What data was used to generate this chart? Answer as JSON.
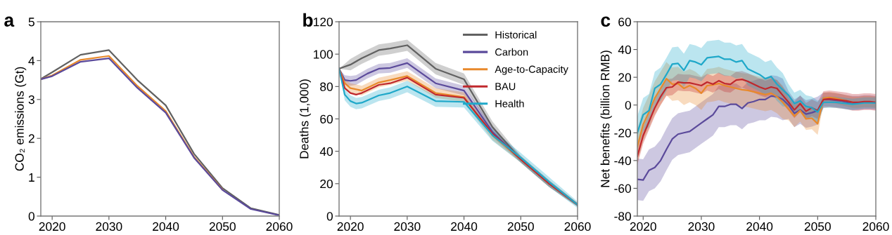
{
  "chart_data": [
    {
      "type": "line",
      "title": "a",
      "ylabel": "CO₂ emissions (Gt)",
      "x": [
        2018,
        2020,
        2025,
        2030,
        2035,
        2040,
        2045,
        2050,
        2055,
        2060
      ],
      "xlim": [
        2018,
        2060
      ],
      "xticks": [
        2020,
        2030,
        2040,
        2050,
        2060
      ],
      "ylim": [
        0,
        5
      ],
      "yticks": [
        0,
        1,
        2,
        3,
        4,
        5
      ],
      "grid": false,
      "legend": false,
      "marker": "none",
      "line_style": "solid",
      "series": [
        {
          "color": "#616161",
          "values": [
            3.53,
            3.7,
            4.15,
            4.27,
            3.5,
            2.85,
            1.6,
            0.72,
            0.2,
            0.03
          ]
        },
        {
          "color": "#e8892b",
          "values": [
            3.52,
            3.62,
            4.02,
            4.12,
            3.35,
            2.7,
            1.52,
            0.68,
            null,
            null
          ]
        },
        {
          "color": "#5b4a9b",
          "values": [
            3.52,
            3.6,
            3.97,
            4.06,
            3.3,
            2.66,
            1.5,
            0.67,
            0.18,
            0.02
          ]
        }
      ]
    },
    {
      "type": "line",
      "title": "b",
      "ylabel": "Deaths (1,000)",
      "xlim": [
        2018,
        2060
      ],
      "xticks": [
        2020,
        2030,
        2040,
        2050,
        2060
      ],
      "ylim": [
        0,
        120
      ],
      "yticks": [
        0,
        20,
        40,
        60,
        80,
        100,
        120
      ],
      "grid": false,
      "legend": "top right",
      "marker": "none",
      "line_style": "solid",
      "series": [
        {
          "name": "Historical",
          "color": "#616161",
          "x": [
            2018,
            2020,
            2022,
            2025,
            2027,
            2030,
            2035,
            2040,
            2045,
            2050,
            2055,
            2060
          ],
          "values": [
            91,
            93.5,
            97.5,
            102.5,
            103.5,
            105.5,
            91,
            84.5,
            55,
            35,
            20,
            7
          ],
          "upper": [
            91,
            97,
            101,
            106,
            107,
            109,
            94.5,
            88,
            58.5,
            37,
            22,
            8
          ],
          "lower": [
            91,
            90,
            94,
            99,
            100,
            102,
            87.5,
            81,
            51.5,
            33,
            18,
            6
          ]
        },
        {
          "name": "Carbon",
          "color": "#5b4a9b",
          "x": [
            2018,
            2019,
            2020,
            2021,
            2023,
            2025,
            2027,
            2030,
            2035,
            2040,
            2045,
            2050,
            2055,
            2060
          ],
          "values": [
            91,
            84,
            83.5,
            84,
            88,
            91,
            91.5,
            94.5,
            82,
            77.5,
            52,
            35,
            20,
            7
          ],
          "upper": [
            91,
            87,
            86.5,
            87,
            91,
            94,
            94.5,
            97.5,
            85,
            80.5,
            55,
            37,
            22,
            8
          ],
          "lower": [
            91,
            81,
            80.5,
            81,
            85,
            88,
            88.5,
            91.5,
            79,
            74.5,
            49,
            33,
            18,
            6
          ]
        },
        {
          "name": "Age-to-Capacity",
          "color": "#e8892b",
          "x": [
            2018,
            2019,
            2020,
            2022,
            2025,
            2027,
            2030,
            2035,
            2040,
            2045,
            2050,
            2055,
            2060
          ],
          "values": [
            91,
            82,
            79,
            77.5,
            82.5,
            84,
            86.5,
            76,
            73.5,
            50,
            35,
            20,
            7
          ],
          "upper": [
            91,
            85,
            82,
            80.5,
            85.5,
            87,
            89.5,
            79,
            76.5,
            53,
            37,
            22,
            8
          ],
          "lower": [
            91,
            79,
            76,
            74.5,
            79.5,
            81,
            83.5,
            73,
            70.5,
            47,
            33,
            18,
            6
          ]
        },
        {
          "name": "BAU",
          "color": "#c0282d",
          "x": [
            2018,
            2019,
            2020,
            2021,
            2022,
            2025,
            2027,
            2030,
            2035,
            2040,
            2045,
            2050,
            2055,
            2060
          ],
          "values": [
            91,
            79,
            76,
            75,
            76,
            81,
            82,
            85.5,
            75,
            73,
            51,
            35,
            20,
            7
          ]
        },
        {
          "name": "Health",
          "color": "#1fa8c9",
          "x": [
            2018,
            2019,
            2020,
            2021,
            2022,
            2025,
            2027,
            2030,
            2035,
            2040,
            2045,
            2050,
            2055,
            2060
          ],
          "values": [
            91,
            75,
            71,
            69.5,
            70,
            74.5,
            76,
            80,
            71,
            70.5,
            50,
            36,
            21,
            7
          ],
          "upper": [
            91,
            78.5,
            74.5,
            73,
            73.5,
            78,
            79.5,
            83.5,
            74.5,
            74,
            53.5,
            39,
            24,
            9
          ],
          "lower": [
            91,
            71.5,
            67.5,
            66,
            66.5,
            71,
            72.5,
            76.5,
            67.5,
            67,
            46.5,
            33,
            18,
            5
          ]
        }
      ]
    },
    {
      "type": "line",
      "title": "c",
      "ylabel": "Net benefits (billion RMB)",
      "x": [
        2019,
        2020,
        2021,
        2022,
        2023,
        2024,
        2025,
        2026,
        2027,
        2028,
        2029,
        2030,
        2031,
        2032,
        2033,
        2034,
        2035,
        2036,
        2037,
        2038,
        2039,
        2040,
        2041,
        2042,
        2043,
        2044,
        2045,
        2046,
        2047,
        2048,
        2049,
        2050,
        2051,
        2052,
        2053,
        2054,
        2055,
        2056,
        2057,
        2058,
        2059,
        2060
      ],
      "xlim": [
        2019,
        2060
      ],
      "xticks": [
        2020,
        2030,
        2040,
        2050,
        2060
      ],
      "ylim": [
        -80,
        60
      ],
      "yticks": [
        -80,
        -60,
        -40,
        -20,
        0,
        20,
        40,
        60
      ],
      "grid": false,
      "legend": false,
      "marker": "none",
      "line_style": "solid",
      "series": [
        {
          "color": "#5b4a9b",
          "values": [
            -53.5,
            -54,
            -47,
            -45,
            -40,
            -32,
            -24.5,
            -21,
            -20,
            -19,
            -16,
            -13,
            -10,
            -7,
            -1,
            -1,
            0.5,
            0.5,
            -2.5,
            1.5,
            2.5,
            4,
            4,
            6.5,
            6,
            4,
            0,
            -6,
            -3.5,
            -6.5,
            -5.5,
            -4,
            4,
            4,
            3.5,
            3,
            2,
            1.5,
            1.5,
            2,
            2,
            1.5
          ],
          "upper": [
            -38.5,
            -39,
            -32,
            -30,
            -25,
            -17,
            -9.5,
            -6,
            -5,
            -4,
            -1,
            2,
            5,
            8,
            14,
            14,
            15.5,
            15.5,
            12.5,
            16.5,
            17.5,
            19,
            19,
            21.5,
            21,
            19,
            10,
            4,
            6.5,
            3.5,
            4.5,
            6,
            9,
            9,
            8.5,
            8,
            7,
            6.5,
            6.5,
            7,
            7,
            6.5
          ],
          "lower": [
            -68.5,
            -69,
            -62,
            -60,
            -55,
            -47,
            -39.5,
            -36,
            -35,
            -34,
            -31,
            -28,
            -25,
            -22,
            -16,
            -16,
            -14.5,
            -14.5,
            -17.5,
            -13.5,
            -12.5,
            -11,
            -11,
            -8.5,
            -9,
            -11,
            -10,
            -16,
            -13.5,
            -16.5,
            -15.5,
            -14,
            -1,
            -1,
            -1.5,
            -2,
            -3,
            -3.5,
            -3.5,
            -3,
            -3,
            -3.5
          ]
        },
        {
          "color": "#e8892b",
          "values": [
            -30,
            -14,
            -5,
            5,
            12,
            19,
            15,
            15.5,
            12,
            14,
            12,
            8.5,
            14,
            14.5,
            15.5,
            14,
            13,
            12,
            11,
            10.5,
            9.5,
            8.5,
            7.5,
            8.5,
            6,
            2,
            -3,
            -8,
            -4,
            -10,
            -9.5,
            -13.5,
            5,
            5.5,
            5,
            4,
            3,
            2,
            null,
            null,
            null,
            null
          ],
          "upper": [
            -18,
            -2,
            7,
            17,
            24,
            31,
            27,
            27.5,
            24,
            26,
            24,
            20.5,
            26,
            26.5,
            27.5,
            26,
            25,
            24,
            23,
            22.5,
            21.5,
            20.5,
            19.5,
            20.5,
            18,
            14,
            5,
            0,
            4,
            -2,
            -1.5,
            -5.5,
            9,
            9.5,
            9,
            8,
            7,
            6,
            6,
            6.5,
            6.5,
            6
          ],
          "lower": [
            -42,
            -26,
            -17,
            -7,
            0,
            7,
            3,
            3.5,
            0,
            2,
            0,
            -3.5,
            2,
            2.5,
            3.5,
            2,
            1,
            0,
            -1,
            -1.5,
            -2.5,
            -3.5,
            -4.5,
            -3.5,
            -6,
            -10,
            -11,
            -16,
            -12,
            -18,
            -17.5,
            -21.5,
            1,
            1.5,
            1,
            0,
            -1,
            -2,
            -2,
            -1.5,
            -1.5,
            -2
          ]
        },
        {
          "color": "#c0282d",
          "values": [
            -37,
            -22,
            -12,
            -2,
            6,
            12.5,
            13,
            16.5,
            16,
            16,
            15,
            14,
            16.5,
            15,
            17.5,
            15.5,
            15,
            18,
            18.5,
            17,
            15,
            13,
            11.5,
            13,
            12,
            7,
            2,
            -3.5,
            1,
            -4.5,
            -2,
            -4,
            4,
            4.5,
            4,
            3.5,
            3,
            2,
            2,
            2.5,
            2.5,
            2
          ],
          "upper": [
            -31,
            -16,
            -6,
            4,
            12,
            18.5,
            19,
            22.5,
            22,
            22,
            21,
            20,
            22.5,
            21,
            23.5,
            21.5,
            21,
            24,
            24.5,
            23,
            21,
            19,
            17.5,
            19,
            18,
            13,
            8,
            2.5,
            7,
            1.5,
            4,
            2,
            10,
            10.5,
            10,
            9.5,
            9,
            8,
            8,
            8.5,
            8.5,
            8
          ],
          "lower": [
            -43,
            -28,
            -18,
            -8,
            0,
            6.5,
            7,
            10.5,
            10,
            10,
            9,
            8,
            10.5,
            9,
            11.5,
            9.5,
            9,
            12,
            12.5,
            11,
            9,
            7,
            5.5,
            7,
            6,
            1,
            -4,
            -9.5,
            -5,
            -10.5,
            -8,
            -10,
            -2,
            -1.5,
            -2,
            -2.5,
            -3,
            -4,
            -4,
            -3.5,
            -3.5,
            -4
          ]
        },
        {
          "color": "#1fa8c9",
          "values": [
            -20,
            -7,
            -4,
            12,
            15,
            22,
            29.5,
            30,
            25,
            32,
            31,
            29,
            34,
            34.5,
            35,
            33,
            33,
            31,
            32,
            26,
            24,
            22,
            19,
            20.5,
            15,
            11,
            7,
            1,
            3,
            -1,
            -2,
            -5,
            2,
            2,
            2,
            1.5,
            1,
            0.5,
            1,
            1.5,
            1.5,
            1.5
          ],
          "upper": [
            -8,
            5,
            8,
            24,
            27,
            34,
            41.5,
            42,
            37,
            44,
            43,
            41,
            46,
            46.5,
            47,
            45,
            45,
            43,
            44,
            38,
            36,
            34,
            31,
            32.5,
            27,
            23,
            15,
            9,
            11,
            7,
            6,
            3,
            6,
            6,
            6,
            5.5,
            5,
            4.5,
            5,
            5.5,
            5.5,
            5.5
          ],
          "lower": [
            -32,
            -19,
            -16,
            0,
            3,
            10,
            17.5,
            18,
            13,
            20,
            19,
            17,
            22,
            22.5,
            23,
            21,
            21,
            19,
            20,
            14,
            12,
            10,
            7,
            8.5,
            3,
            -1,
            -1,
            -7,
            -5,
            -9,
            -10,
            -13,
            -2,
            -2,
            -2,
            -2.5,
            -3,
            -3.5,
            -3,
            -2.5,
            -2.5,
            -2.5
          ]
        }
      ]
    }
  ]
}
